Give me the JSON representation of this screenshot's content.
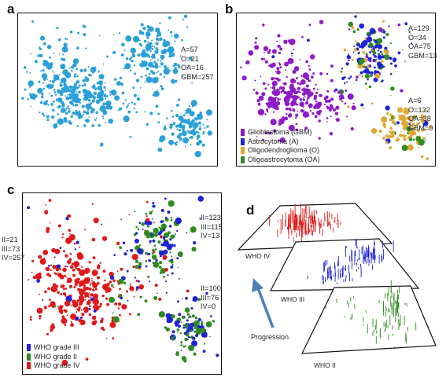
{
  "panels": {
    "a": {
      "letter": "a",
      "stats": [
        "A=57",
        "O=21",
        "OA=16",
        "GBM=257"
      ]
    },
    "b": {
      "letter": "b",
      "stats_top": [
        "A=129",
        "O=34",
        "OA=75",
        "GBM=13"
      ],
      "stats_bottom": [
        "A=6",
        "O=132",
        "OA=38",
        "GBM=0"
      ],
      "legend": [
        {
          "label": "Glioblastoma (GBM)",
          "color": "#8e1bc8"
        },
        {
          "label": "Astrocytoma (A)",
          "color": "#1e22d6"
        },
        {
          "label": "Oligodendroglioma (O)",
          "color": "#e0a838"
        },
        {
          "label": "Oligoastrocytoma (OA)",
          "color": "#2e8b20"
        }
      ]
    },
    "c": {
      "letter": "c",
      "stats_left": [
        "II=21",
        "III=73",
        "IV=257"
      ],
      "stats_top": [
        "II=123",
        "III=115",
        "IV=13"
      ],
      "stats_bottom": [
        "II=100",
        "III=76",
        "IV=0"
      ],
      "legend": [
        {
          "label": "WHO grade III",
          "color": "#1e22d6"
        },
        {
          "label": "WHO grade II",
          "color": "#2e8b20"
        },
        {
          "label": "WHO grade IV",
          "color": "#e01818"
        }
      ]
    },
    "d": {
      "letter": "d",
      "planes": [
        {
          "label": "WHO IV",
          "color": "#e01818"
        },
        {
          "label": "WHO III",
          "color": "#1e22d6"
        },
        {
          "label": "WHO II",
          "color": "#2e8b20"
        }
      ],
      "arrow_label": "Progression",
      "arrow_color": "#4a7fb8"
    }
  },
  "chart_data": [
    {
      "type": "scatter",
      "panel": "a",
      "color": "#2aa0d8",
      "clusters": [
        "left",
        "top-right",
        "bottom-right"
      ]
    },
    {
      "type": "scatter",
      "panel": "b",
      "series": [
        {
          "name": "Glioblastoma (GBM)",
          "color": "#8e1bc8"
        },
        {
          "name": "Astrocytoma (A)",
          "color": "#1e22d6"
        },
        {
          "name": "Oligodendroglioma (O)",
          "color": "#e0a838"
        },
        {
          "name": "Oligoastrocytoma (OA)",
          "color": "#2e8b20"
        }
      ],
      "annotations": [
        "A=129 O=34 OA=75 GBM=13",
        "A=6 O=132 OA=38 GBM=0"
      ]
    },
    {
      "type": "scatter",
      "panel": "c",
      "series": [
        {
          "name": "WHO grade III",
          "color": "#1e22d6"
        },
        {
          "name": "WHO grade II",
          "color": "#2e8b20"
        },
        {
          "name": "WHO grade IV",
          "color": "#e01818"
        }
      ],
      "annotations": [
        "II=21 III=73 IV=257",
        "II=123 III=115 IV=13",
        "II=100 III=76 IV=0"
      ]
    }
  ]
}
